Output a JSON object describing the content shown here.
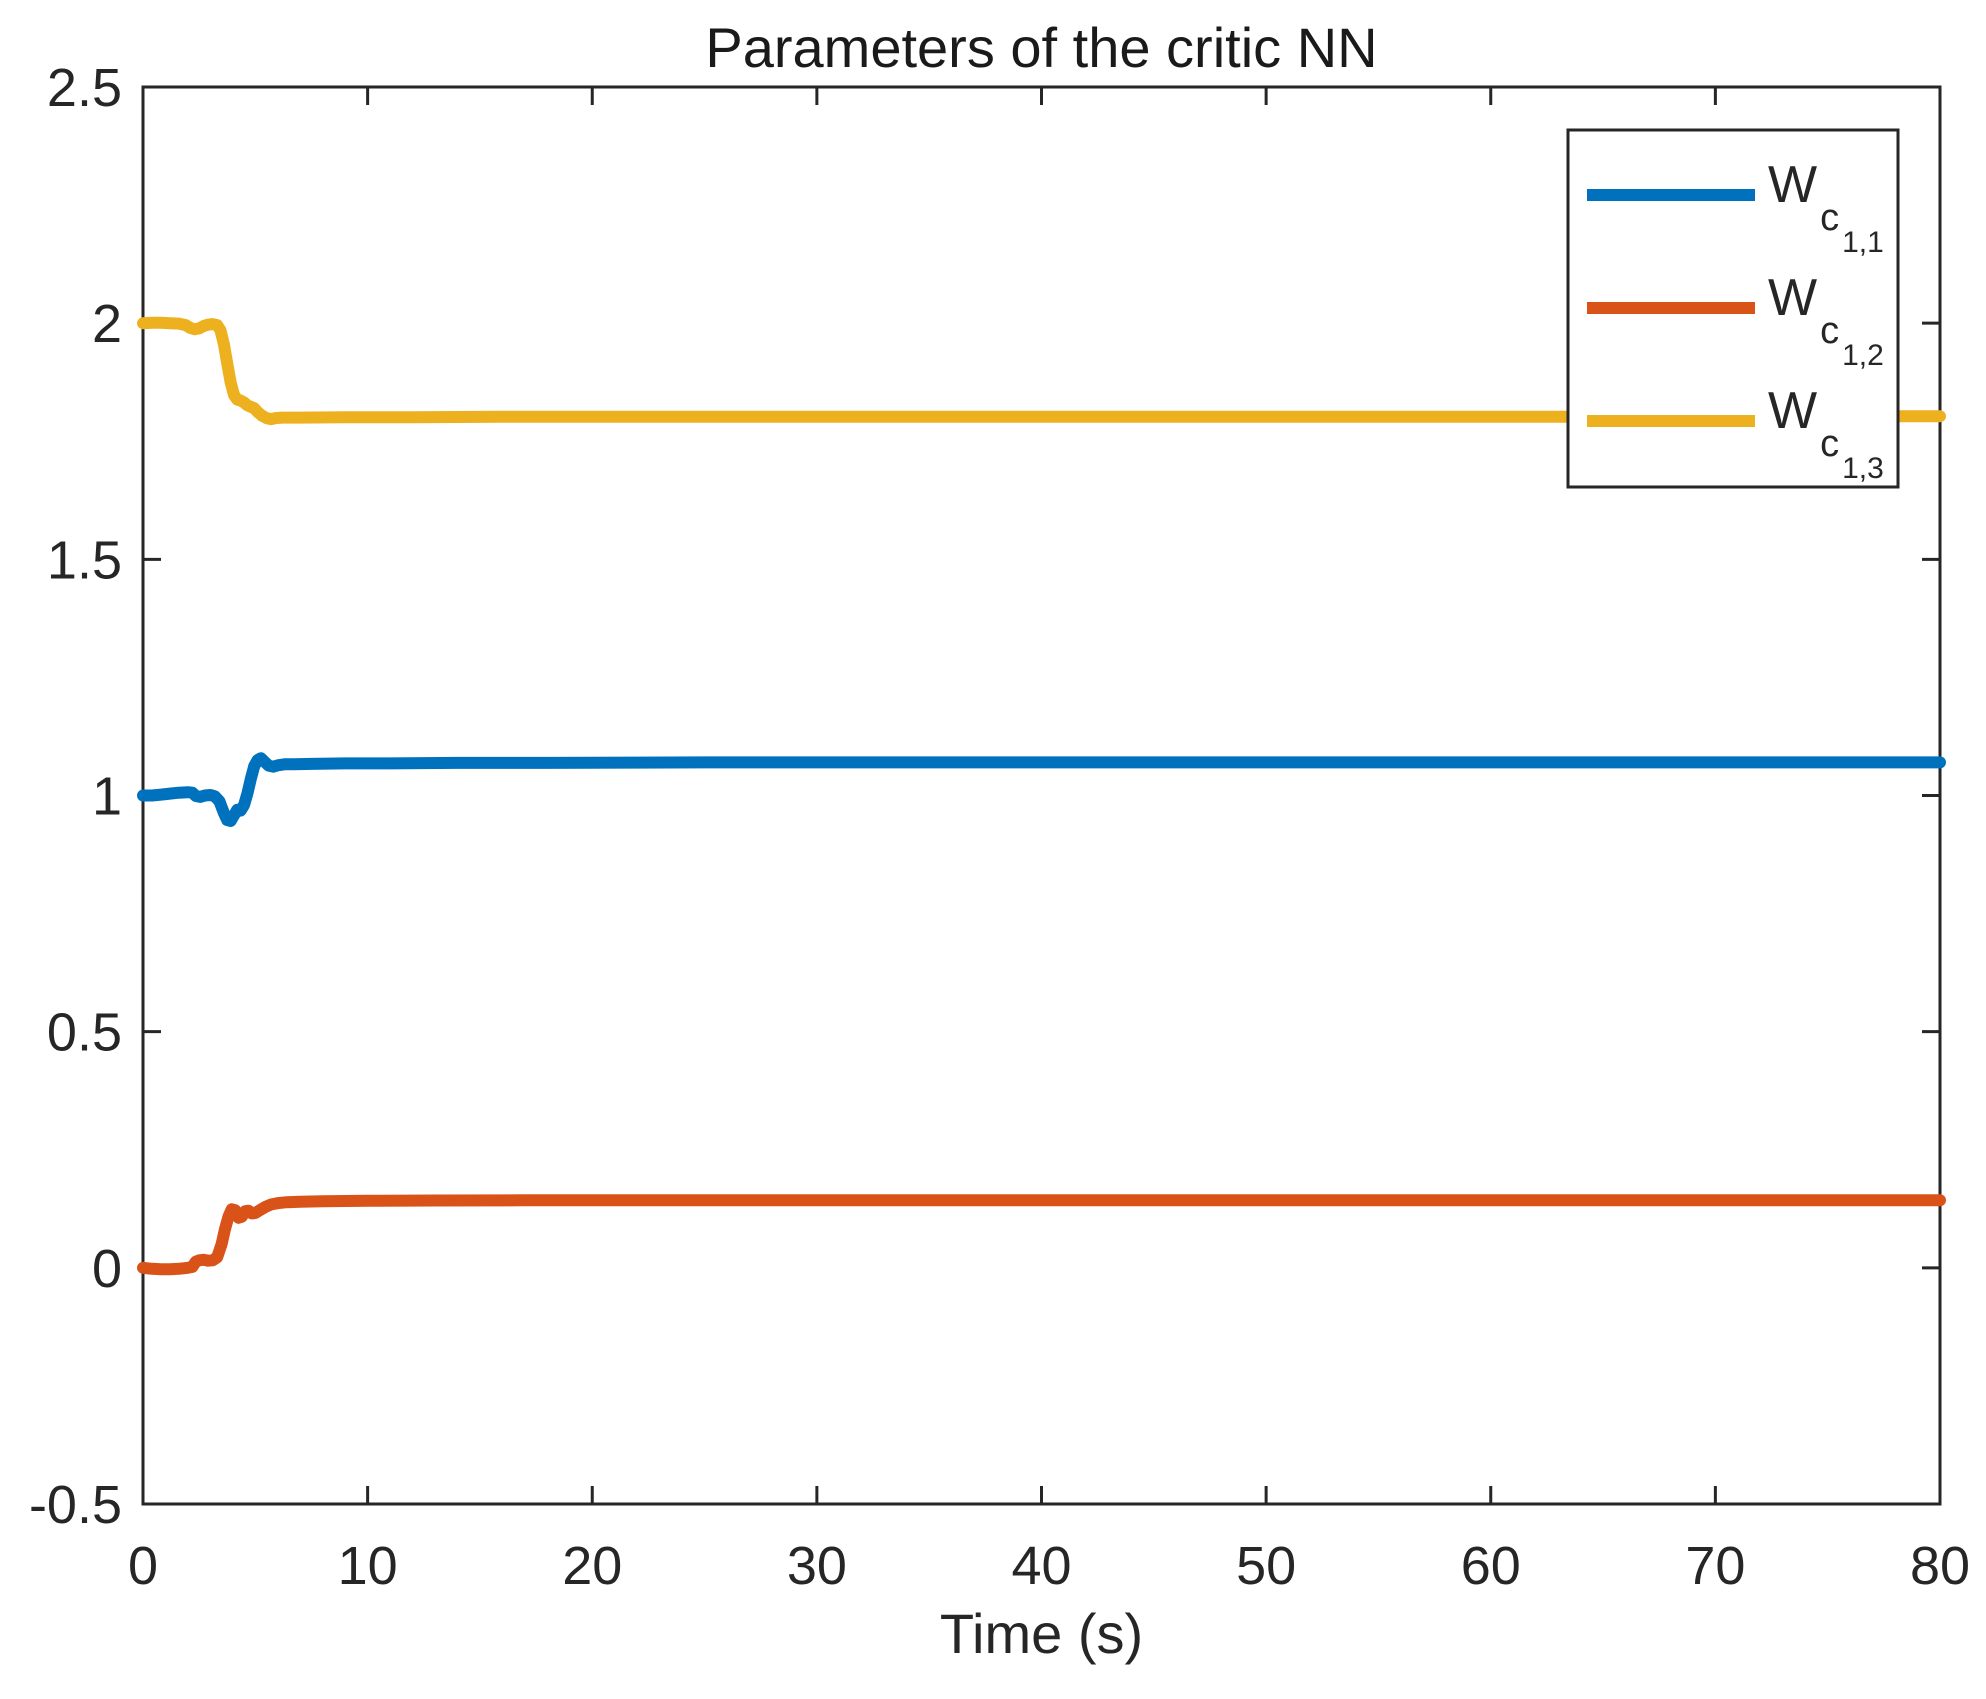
{
  "figure": {
    "background": "#ffffff",
    "axes_color": "#262626",
    "title_color": "#1a1a1a"
  },
  "chart_data": {
    "type": "line",
    "title": "Parameters of the critic NN",
    "xlabel": "Time (s)",
    "ylabel": "",
    "xlim": [
      0,
      80
    ],
    "ylim": [
      -0.5,
      2.5
    ],
    "xticks": [
      0,
      10,
      20,
      30,
      40,
      50,
      60,
      70,
      80
    ],
    "yticks": [
      -0.5,
      0,
      0.5,
      1,
      1.5,
      2,
      2.5
    ],
    "grid": false,
    "legend_position": "northeast",
    "series": [
      {
        "name": "W_{c_{1,1}}",
        "label_parts": {
          "base": "W",
          "sub": "c",
          "subsub": "1,1"
        },
        "color": "#0072BD",
        "points": [
          [
            0,
            1.0
          ],
          [
            0.4,
            1.0
          ],
          [
            0.8,
            1.002
          ],
          [
            1.2,
            1.004
          ],
          [
            1.6,
            1.006
          ],
          [
            2.0,
            1.007
          ],
          [
            2.2,
            1.006
          ],
          [
            2.35,
            0.999
          ],
          [
            2.55,
            0.997
          ],
          [
            2.75,
            1.0
          ],
          [
            3.0,
            1.001
          ],
          [
            3.2,
            0.998
          ],
          [
            3.4,
            0.988
          ],
          [
            3.6,
            0.963
          ],
          [
            3.75,
            0.948
          ],
          [
            3.9,
            0.946
          ],
          [
            4.05,
            0.958
          ],
          [
            4.2,
            0.97
          ],
          [
            4.35,
            0.968
          ],
          [
            4.5,
            0.98
          ],
          [
            4.65,
            1.005
          ],
          [
            4.8,
            1.035
          ],
          [
            4.95,
            1.062
          ],
          [
            5.1,
            1.075
          ],
          [
            5.25,
            1.079
          ],
          [
            5.4,
            1.072
          ],
          [
            5.6,
            1.063
          ],
          [
            5.8,
            1.061
          ],
          [
            6.0,
            1.064
          ],
          [
            6.3,
            1.066
          ],
          [
            6.7,
            1.066
          ],
          [
            7.5,
            1.067
          ],
          [
            9,
            1.068
          ],
          [
            11,
            1.068
          ],
          [
            14,
            1.069
          ],
          [
            18,
            1.069
          ],
          [
            25,
            1.07
          ],
          [
            35,
            1.07
          ],
          [
            50,
            1.07
          ],
          [
            65,
            1.07
          ],
          [
            80,
            1.07
          ]
        ]
      },
      {
        "name": "W_{c_{1,2}}",
        "label_parts": {
          "base": "W",
          "sub": "c",
          "subsub": "1,2"
        },
        "color": "#D95319",
        "points": [
          [
            0,
            0.0
          ],
          [
            0.4,
            -0.002
          ],
          [
            0.8,
            -0.003
          ],
          [
            1.2,
            -0.003
          ],
          [
            1.6,
            -0.002
          ],
          [
            2.0,
            0.0
          ],
          [
            2.2,
            0.002
          ],
          [
            2.35,
            0.013
          ],
          [
            2.5,
            0.016
          ],
          [
            2.7,
            0.017
          ],
          [
            2.9,
            0.015
          ],
          [
            3.1,
            0.016
          ],
          [
            3.3,
            0.022
          ],
          [
            3.5,
            0.05
          ],
          [
            3.65,
            0.082
          ],
          [
            3.8,
            0.108
          ],
          [
            3.95,
            0.124
          ],
          [
            4.1,
            0.122
          ],
          [
            4.25,
            0.106
          ],
          [
            4.4,
            0.108
          ],
          [
            4.55,
            0.12
          ],
          [
            4.7,
            0.121
          ],
          [
            4.85,
            0.115
          ],
          [
            5.0,
            0.116
          ],
          [
            5.2,
            0.122
          ],
          [
            5.45,
            0.129
          ],
          [
            5.7,
            0.134
          ],
          [
            6.0,
            0.137
          ],
          [
            6.4,
            0.139
          ],
          [
            7.0,
            0.14
          ],
          [
            8,
            0.141
          ],
          [
            10,
            0.142
          ],
          [
            13,
            0.1425
          ],
          [
            17,
            0.143
          ],
          [
            25,
            0.143
          ],
          [
            35,
            0.143
          ],
          [
            50,
            0.143
          ],
          [
            65,
            0.143
          ],
          [
            80,
            0.143
          ]
        ]
      },
      {
        "name": "W_{c_{1,3}}",
        "label_parts": {
          "base": "W",
          "sub": "c",
          "subsub": "1,3"
        },
        "color": "#EDB120",
        "points": [
          [
            0,
            2.0
          ],
          [
            0.4,
            2.001
          ],
          [
            0.8,
            2.001
          ],
          [
            1.2,
            2.0
          ],
          [
            1.6,
            1.999
          ],
          [
            1.9,
            1.996
          ],
          [
            2.1,
            1.99
          ],
          [
            2.3,
            1.987
          ],
          [
            2.5,
            1.989
          ],
          [
            2.7,
            1.994
          ],
          [
            2.9,
            1.997
          ],
          [
            3.1,
            1.998
          ],
          [
            3.3,
            1.996
          ],
          [
            3.45,
            1.985
          ],
          [
            3.6,
            1.955
          ],
          [
            3.75,
            1.915
          ],
          [
            3.9,
            1.875
          ],
          [
            4.05,
            1.848
          ],
          [
            4.2,
            1.838
          ],
          [
            4.35,
            1.836
          ],
          [
            4.5,
            1.832
          ],
          [
            4.65,
            1.826
          ],
          [
            4.8,
            1.823
          ],
          [
            4.95,
            1.82
          ],
          [
            5.1,
            1.812
          ],
          [
            5.3,
            1.804
          ],
          [
            5.5,
            1.799
          ],
          [
            5.7,
            1.797
          ],
          [
            5.9,
            1.799
          ],
          [
            6.2,
            1.8
          ],
          [
            7,
            1.8
          ],
          [
            9,
            1.801
          ],
          [
            12,
            1.801
          ],
          [
            16,
            1.802
          ],
          [
            25,
            1.802
          ],
          [
            35,
            1.802
          ],
          [
            50,
            1.802
          ],
          [
            65,
            1.802
          ],
          [
            80,
            1.803
          ]
        ]
      }
    ]
  }
}
